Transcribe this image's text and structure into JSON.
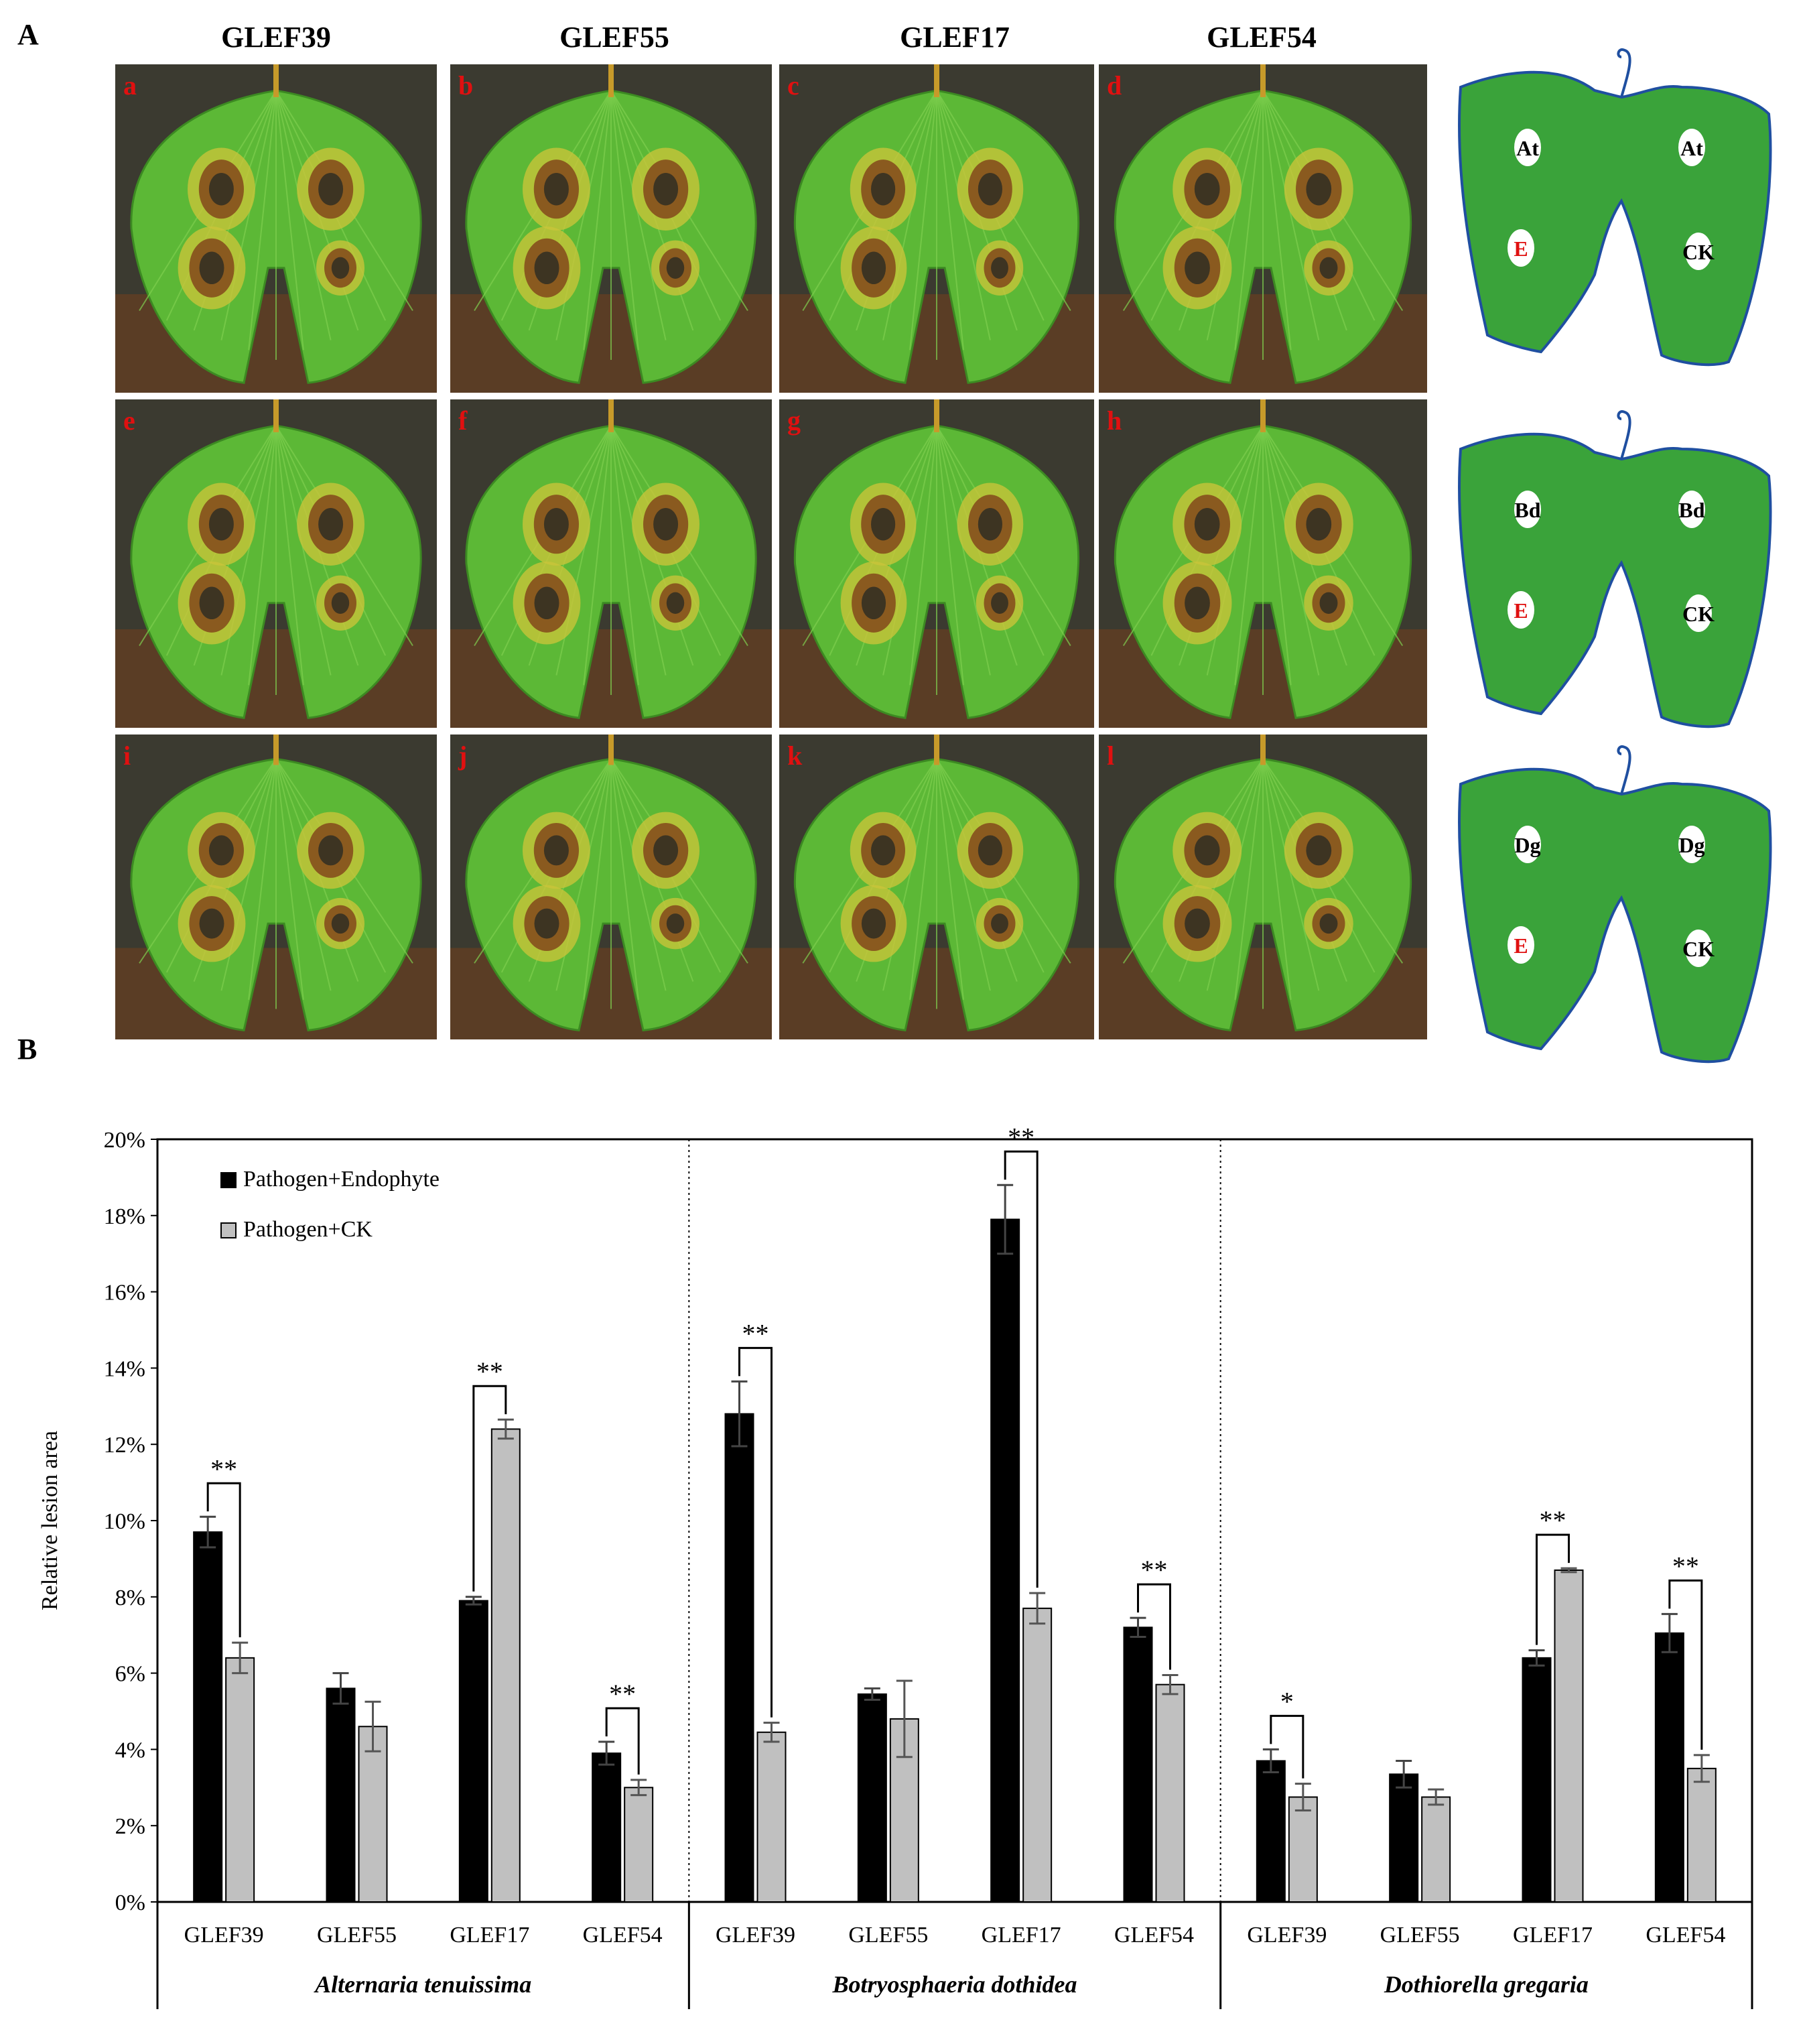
{
  "panel_a": {
    "label": "A",
    "columns": [
      "GLEF39",
      "GLEF55",
      "GLEF17",
      "GLEF54"
    ],
    "photo_letters": [
      "a",
      "b",
      "c",
      "d",
      "e",
      "f",
      "g",
      "h",
      "i",
      "j",
      "k",
      "l"
    ],
    "diagrams": [
      {
        "top_left": "At",
        "top_right": "At",
        "bottom_left": "E",
        "bottom_right": "CK"
      },
      {
        "top_left": "Bd",
        "top_right": "Bd",
        "bottom_left": "E",
        "bottom_right": "CK"
      },
      {
        "top_left": "Dg",
        "top_right": "Dg",
        "bottom_left": "E",
        "bottom_right": "CK"
      }
    ],
    "colors": {
      "leaf": "#3aa33a",
      "leaf_outline": "#1f4fa0",
      "spot_label_e": "#e01010",
      "photo_letter": "#e01010"
    }
  },
  "panel_b": {
    "label": "B"
  },
  "chart_data": {
    "type": "bar",
    "ylabel": "Relative lesion area",
    "ylim": [
      0,
      20
    ],
    "yticks": [
      "0%",
      "2%",
      "4%",
      "6%",
      "8%",
      "10%",
      "12%",
      "14%",
      "16%",
      "18%",
      "20%"
    ],
    "legend": [
      "Pathogen+Endophyte",
      "Pathogen+CK"
    ],
    "legend_position": "top-left",
    "series_colors": [
      "#000000",
      "#c0c0c0"
    ],
    "groups": [
      {
        "pathogen": "Alternaria tenuissima",
        "categories": [
          "GLEF39",
          "GLEF55",
          "GLEF17",
          "GLEF54"
        ],
        "series": [
          {
            "name": "Pathogen+Endophyte",
            "values": [
              9.7,
              5.6,
              7.9,
              3.9
            ],
            "errors": [
              0.4,
              0.4,
              0.1,
              0.3
            ]
          },
          {
            "name": "Pathogen+CK",
            "values": [
              6.4,
              4.6,
              12.4,
              3.0
            ],
            "errors": [
              0.4,
              0.65,
              0.25,
              0.2
            ]
          }
        ],
        "significance": [
          "**",
          "",
          "**",
          "**"
        ]
      },
      {
        "pathogen": "Botryosphaeria dothidea",
        "categories": [
          "GLEF39",
          "GLEF55",
          "GLEF17",
          "GLEF54"
        ],
        "series": [
          {
            "name": "Pathogen+Endophyte",
            "values": [
              12.8,
              5.45,
              17.9,
              7.2
            ],
            "errors": [
              0.85,
              0.15,
              0.9,
              0.25
            ]
          },
          {
            "name": "Pathogen+CK",
            "values": [
              4.45,
              4.8,
              7.7,
              5.7
            ],
            "errors": [
              0.25,
              1.0,
              0.4,
              0.25
            ]
          }
        ],
        "significance": [
          "**",
          "",
          "**",
          "**"
        ]
      },
      {
        "pathogen": "Dothiorella gregaria",
        "categories": [
          "GLEF39",
          "GLEF55",
          "GLEF17",
          "GLEF54"
        ],
        "series": [
          {
            "name": "Pathogen+Endophyte",
            "values": [
              3.7,
              3.35,
              6.4,
              7.05
            ],
            "errors": [
              0.3,
              0.35,
              0.2,
              0.5
            ]
          },
          {
            "name": "Pathogen+CK",
            "values": [
              2.75,
              2.75,
              8.7,
              3.5
            ],
            "errors": [
              0.35,
              0.2,
              0.05,
              0.35
            ]
          }
        ],
        "significance": [
          "*",
          "",
          "**",
          "**"
        ]
      }
    ]
  }
}
